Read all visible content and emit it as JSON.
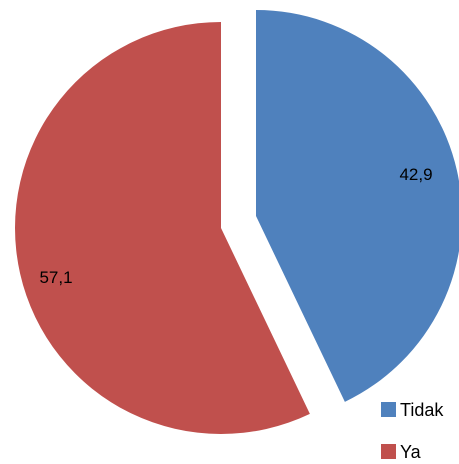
{
  "chart_data": {
    "type": "pie",
    "categories": [
      "Tidak",
      "Ya"
    ],
    "values": [
      42.9,
      57.1
    ],
    "data_labels": [
      "42,9",
      "57,1"
    ],
    "colors": [
      "#4f81bd",
      "#c0504d"
    ],
    "exploded": true,
    "legend_placement": "bottom-right",
    "title": "",
    "legend": [
      {
        "label": "Tidak",
        "color": "#4f81bd"
      },
      {
        "label": "Ya",
        "color": "#c0504d"
      }
    ]
  }
}
